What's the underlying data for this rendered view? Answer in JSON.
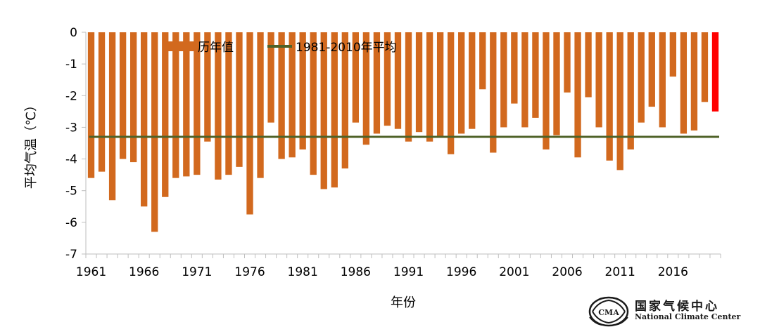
{
  "chart_data": {
    "type": "bar",
    "title": "",
    "xlabel": "年份",
    "ylabel": "平均气温（℃）",
    "ylim": [
      -7,
      0
    ],
    "yticks": [
      0,
      -1,
      -2,
      -3,
      -4,
      -5,
      -6,
      -7
    ],
    "xtick_labels": [
      "1961",
      "1966",
      "1971",
      "1976",
      "1981",
      "1986",
      "1991",
      "1996",
      "2001",
      "2006",
      "2011",
      "2016"
    ],
    "grid": false,
    "legend_position": "top",
    "series": [
      {
        "name": "历年值",
        "color": "#D2691E",
        "x": [
          1961,
          1962,
          1963,
          1964,
          1965,
          1966,
          1967,
          1968,
          1969,
          1970,
          1971,
          1972,
          1973,
          1974,
          1975,
          1976,
          1977,
          1978,
          1979,
          1980,
          1981,
          1982,
          1983,
          1984,
          1985,
          1986,
          1987,
          1988,
          1989,
          1990,
          1991,
          1992,
          1993,
          1994,
          1995,
          1996,
          1997,
          1998,
          1999,
          2000,
          2001,
          2002,
          2003,
          2004,
          2005,
          2006,
          2007,
          2008,
          2009,
          2010,
          2011,
          2012,
          2013,
          2014,
          2015,
          2016,
          2017,
          2018,
          2019,
          2020
        ],
        "values": [
          -4.6,
          -4.4,
          -5.3,
          -4.0,
          -4.1,
          -5.5,
          -6.3,
          -5.2,
          -4.6,
          -4.55,
          -4.5,
          -3.45,
          -4.65,
          -4.5,
          -4.25,
          -5.75,
          -4.6,
          -2.85,
          -4.0,
          -3.95,
          -3.7,
          -4.5,
          -4.95,
          -4.9,
          -4.3,
          -2.85,
          -3.55,
          -3.2,
          -2.95,
          -3.05,
          -3.45,
          -3.15,
          -3.45,
          -3.3,
          -3.85,
          -3.2,
          -3.05,
          -1.8,
          -3.8,
          -3.0,
          -2.25,
          -3.0,
          -2.7,
          -3.7,
          -3.25,
          -1.9,
          -3.95,
          -2.05,
          -3.0,
          -4.05,
          -4.35,
          -3.7,
          -2.85,
          -2.35,
          -3.0,
          -1.4,
          -3.2,
          -3.1,
          -2.2,
          -2.5
        ],
        "highlight": {
          "x": 2020,
          "color": "#FF0000"
        }
      },
      {
        "name": "1981-2010年平均",
        "type": "line",
        "color": "#4F6228",
        "value": -3.3
      }
    ]
  },
  "logo": {
    "name_cn": "国家气候中心",
    "name_en": "National Climate Center",
    "emblem_text": "CMA"
  }
}
